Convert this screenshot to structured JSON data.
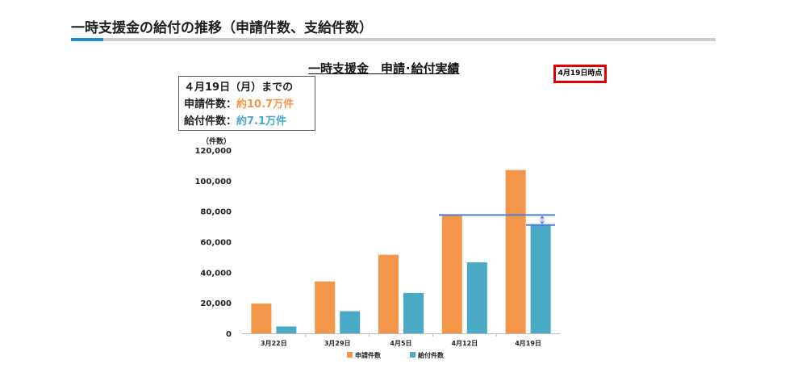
{
  "page": {
    "title": "一時支援金の給付の推移（申請件数、支給件数）"
  },
  "summary": {
    "heading": "４月19日（月）までの",
    "applications_label": "申請件数：",
    "applications_value": "約10.7万件",
    "payments_label": "給付件数：",
    "payments_value": "約7.1万件"
  },
  "badge": {
    "label": "4月19日時点",
    "color": "#e00000"
  },
  "chart_data": {
    "type": "bar",
    "title": "一時支援金　申請･給付実績",
    "y_unit": "（件数）",
    "categories": [
      "3月22日",
      "3月29日",
      "4月5日",
      "4月12日",
      "4月19日"
    ],
    "series": [
      {
        "name": "申請件数",
        "color": "#f4964a",
        "values": [
          19500,
          34000,
          51500,
          77500,
          107000
        ]
      },
      {
        "name": "給付件数",
        "color": "#4aa9c4",
        "values": [
          4500,
          14500,
          26500,
          46500,
          71000
        ]
      }
    ],
    "ylim": [
      0,
      120000
    ],
    "yticks": [
      0,
      20000,
      40000,
      60000,
      80000,
      100000,
      120000
    ],
    "ytick_labels": [
      "0",
      "20,000",
      "40,000",
      "60,000",
      "80,000",
      "100,000",
      "120,000"
    ],
    "reference_lines": [
      {
        "value": 77500,
        "color": "#4a7fe0"
      },
      {
        "value": 71000,
        "color": "#4a7fe0"
      }
    ],
    "legend_position": "bottom",
    "grid": false
  }
}
